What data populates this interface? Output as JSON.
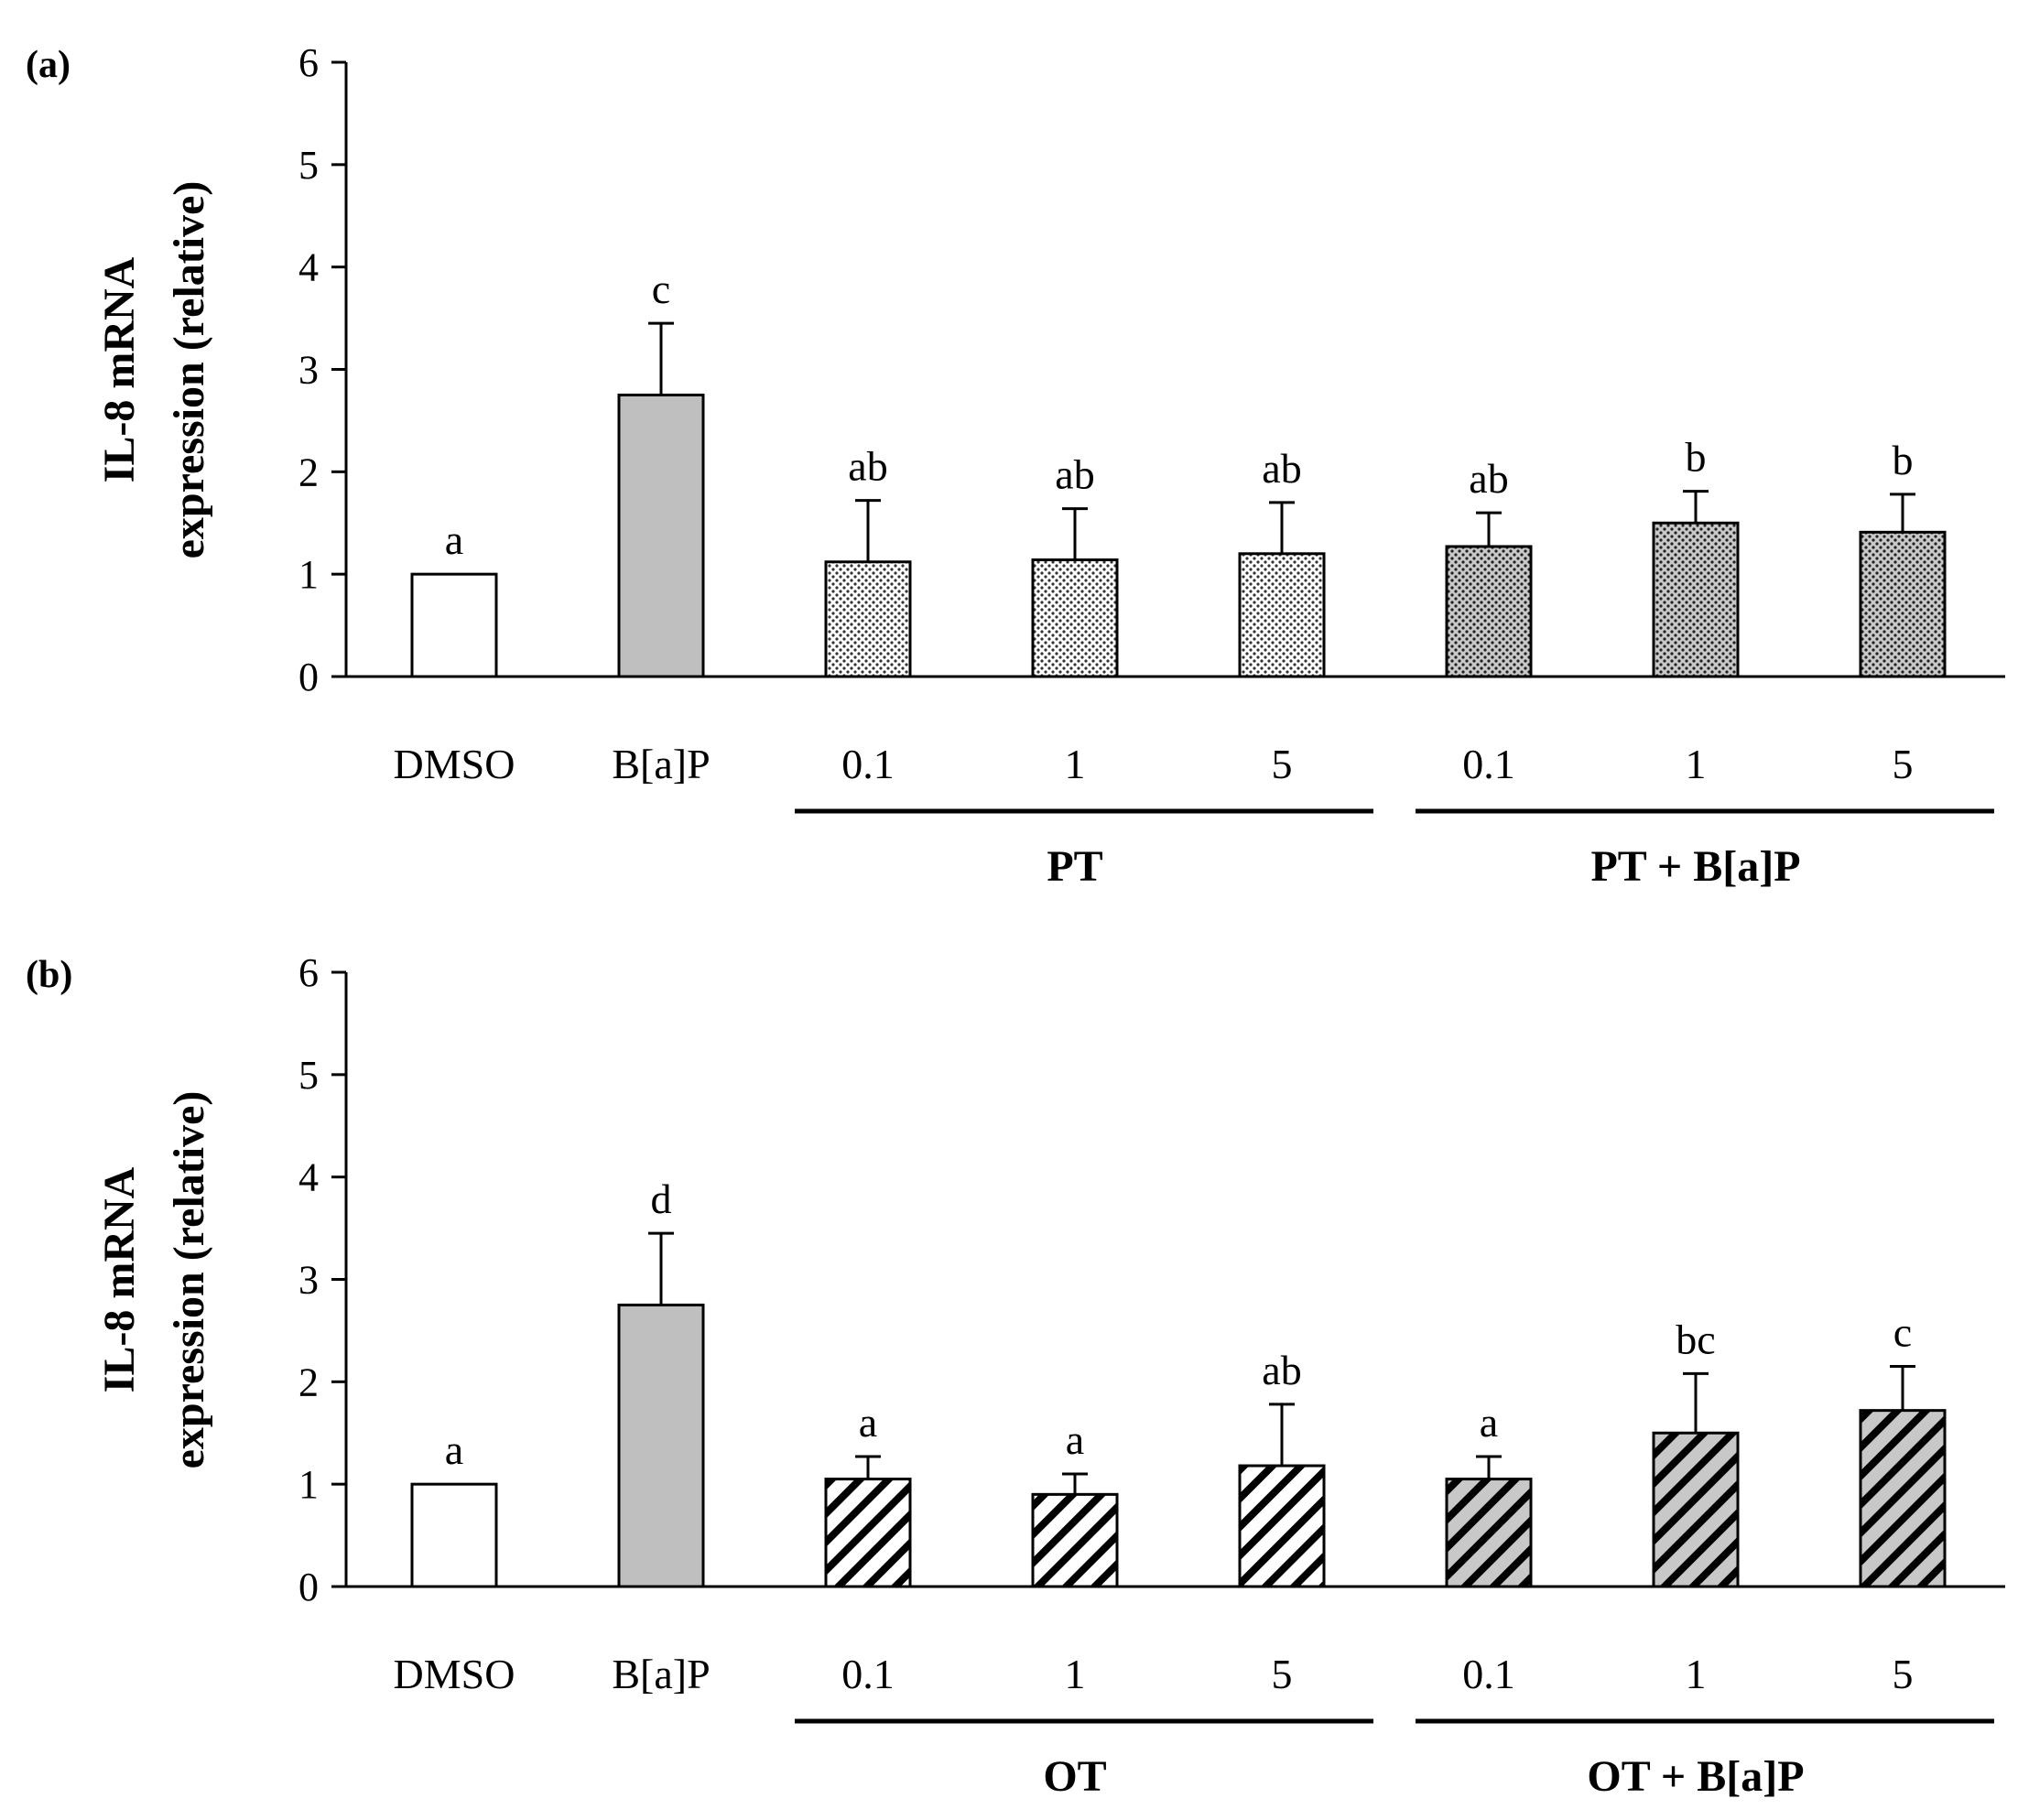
{
  "chart_data": [
    {
      "type": "bar",
      "panel_label": "(a)",
      "ylabel": [
        "IL-8 mRNA",
        "expression (relative)"
      ],
      "ylim": [
        0,
        6
      ],
      "yticks": [
        0,
        1,
        2,
        3,
        4,
        5,
        6
      ],
      "categories": [
        "DMSO",
        "B[a]P",
        "0.1",
        "1",
        "5",
        "0.1",
        "1",
        "5"
      ],
      "values": [
        1.0,
        2.75,
        1.12,
        1.14,
        1.2,
        1.27,
        1.5,
        1.41
      ],
      "errors": [
        0.0,
        0.7,
        0.6,
        0.5,
        0.5,
        0.33,
        0.31,
        0.37
      ],
      "letters": [
        "a",
        "c",
        "ab",
        "ab",
        "ab",
        "ab",
        "b",
        "b"
      ],
      "fills": [
        "white",
        "gray",
        "dots-light",
        "dots-light",
        "dots-light",
        "dots-dark",
        "dots-dark",
        "dots-dark"
      ],
      "groups": [
        {
          "label": "PT",
          "start": 2,
          "end": 4
        },
        {
          "label": "PT + B[a]P",
          "start": 5,
          "end": 7
        }
      ]
    },
    {
      "type": "bar",
      "panel_label": "(b)",
      "ylabel": [
        "IL-8 mRNA",
        "expression (relative)"
      ],
      "ylim": [
        0,
        6
      ],
      "yticks": [
        0,
        1,
        2,
        3,
        4,
        5,
        6
      ],
      "categories": [
        "DMSO",
        "B[a]P",
        "0.1",
        "1",
        "5",
        "0.1",
        "1",
        "5"
      ],
      "values": [
        1.0,
        2.75,
        1.05,
        0.9,
        1.18,
        1.05,
        1.5,
        1.72
      ],
      "errors": [
        0.0,
        0.7,
        0.22,
        0.2,
        0.6,
        0.22,
        0.58,
        0.43
      ],
      "letters": [
        "a",
        "d",
        "a",
        "a",
        "ab",
        "a",
        "bc",
        "c"
      ],
      "fills": [
        "white",
        "gray",
        "hatch-white",
        "hatch-white",
        "hatch-white",
        "hatch-gray",
        "hatch-gray",
        "hatch-gray"
      ],
      "groups": [
        {
          "label": "OT",
          "start": 2,
          "end": 4
        },
        {
          "label": "OT + B[a]P",
          "start": 5,
          "end": 7
        }
      ]
    }
  ],
  "colors": {
    "axis": "#000000",
    "bar_gray": "#bfbfbf",
    "dots_light_bg": "#ffffff",
    "dots_dark_bg": "#c8c8c8",
    "hatch_gray_bg": "#c8c8c8"
  }
}
